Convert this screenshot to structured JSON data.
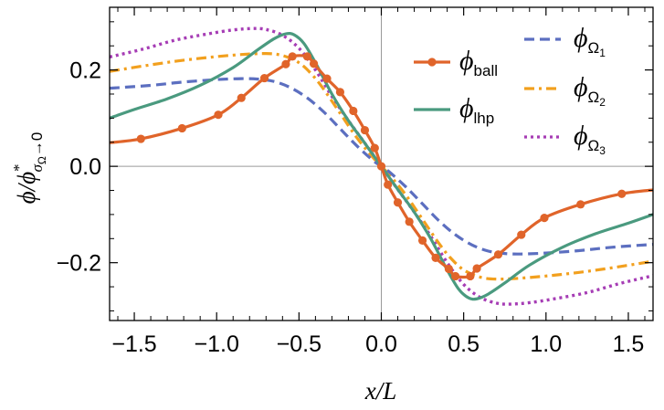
{
  "chart_data": {
    "type": "line",
    "xlabel": "x/L",
    "ylabel": {
      "main": "ϕ/ϕ",
      "sup": "*",
      "sub_sigma": "σ",
      "sub_omega": "Ω",
      "sub_arrow": "→0"
    },
    "xlim": [
      -1.65,
      1.65
    ],
    "ylim": [
      -0.32,
      0.33
    ],
    "x_ticks": [
      -1.5,
      -1.0,
      -0.5,
      0.0,
      0.5,
      1.0,
      1.5
    ],
    "x_tick_labels": [
      "−1.5",
      "−1.0",
      "−0.5",
      "0.0",
      "0.5",
      "1.0",
      "1.5"
    ],
    "y_ticks": [
      -0.2,
      0.0,
      0.2
    ],
    "y_tick_labels": [
      "−0.2",
      "0.0",
      "0.2"
    ],
    "colors": {
      "ball": "#E0642A",
      "lhp": "#4A9A7F",
      "omega1": "#5C6FC0",
      "omega2": "#F2A01E",
      "omega3": "#A63DB5"
    },
    "series": [
      {
        "id": "ball",
        "name": "ϕ",
        "sub": "ball",
        "style": "solid-markers",
        "x": [
          -1.65,
          -1.46,
          -1.21,
          -0.99,
          -0.85,
          -0.71,
          -0.58,
          -0.54,
          -0.45,
          -0.41,
          -0.33,
          -0.25,
          -0.17,
          -0.1,
          -0.04,
          0.0,
          0.04,
          0.1,
          0.17,
          0.25,
          0.33,
          0.41,
          0.45,
          0.54,
          0.58,
          0.71,
          0.85,
          0.99,
          1.21,
          1.46,
          1.65
        ],
        "y": [
          0.049,
          0.057,
          0.079,
          0.107,
          0.142,
          0.183,
          0.212,
          0.228,
          0.228,
          0.213,
          0.182,
          0.154,
          0.115,
          0.075,
          0.038,
          0.0,
          -0.038,
          -0.075,
          -0.115,
          -0.154,
          -0.19,
          -0.213,
          -0.228,
          -0.228,
          -0.212,
          -0.183,
          -0.142,
          -0.107,
          -0.079,
          -0.057,
          -0.049
        ],
        "markers_x": [
          -1.46,
          -1.21,
          -0.99,
          -0.85,
          -0.71,
          -0.58,
          -0.54,
          -0.45,
          -0.41,
          -0.33,
          -0.25,
          -0.17,
          -0.1,
          -0.04,
          0.0,
          0.04,
          0.1,
          0.17,
          0.25,
          0.33,
          0.41,
          0.45,
          0.54,
          0.58,
          0.71,
          0.85,
          0.99,
          1.21,
          1.46
        ]
      },
      {
        "id": "lhp",
        "name": "ϕ",
        "sub": "lhp",
        "style": "solid",
        "x": [
          -1.65,
          -1.5,
          -1.3,
          -1.1,
          -0.9,
          -0.75,
          -0.65,
          -0.58,
          -0.53,
          -0.47,
          -0.4,
          -0.3,
          -0.2,
          -0.1,
          0.0,
          0.1,
          0.2,
          0.3,
          0.4,
          0.47,
          0.53,
          0.58,
          0.65,
          0.75,
          0.9,
          1.1,
          1.3,
          1.5,
          1.65
        ],
        "y": [
          0.1,
          0.118,
          0.14,
          0.168,
          0.205,
          0.242,
          0.265,
          0.275,
          0.273,
          0.255,
          0.215,
          0.15,
          0.095,
          0.048,
          0.0,
          -0.048,
          -0.095,
          -0.15,
          -0.215,
          -0.255,
          -0.273,
          -0.275,
          -0.265,
          -0.242,
          -0.205,
          -0.168,
          -0.14,
          -0.118,
          -0.1
        ]
      },
      {
        "id": "omega1",
        "name": "ϕ",
        "sub": "Ω",
        "subsub": "1",
        "style": "dashed",
        "x": [
          -1.65,
          -1.4,
          -1.2,
          -1.0,
          -0.85,
          -0.75,
          -0.65,
          -0.55,
          -0.45,
          -0.35,
          -0.25,
          -0.15,
          -0.05,
          0.0,
          0.05,
          0.15,
          0.25,
          0.35,
          0.45,
          0.55,
          0.65,
          0.75,
          0.85,
          1.0,
          1.2,
          1.4,
          1.65
        ],
        "y": [
          0.162,
          0.168,
          0.175,
          0.18,
          0.182,
          0.181,
          0.176,
          0.163,
          0.142,
          0.113,
          0.078,
          0.043,
          0.012,
          0.0,
          -0.012,
          -0.043,
          -0.078,
          -0.113,
          -0.142,
          -0.163,
          -0.176,
          -0.181,
          -0.182,
          -0.18,
          -0.175,
          -0.168,
          -0.162
        ]
      },
      {
        "id": "omega2",
        "name": "ϕ",
        "sub": "Ω",
        "subsub": "2",
        "style": "dashdot",
        "x": [
          -1.65,
          -1.45,
          -1.25,
          -1.05,
          -0.85,
          -0.7,
          -0.6,
          -0.5,
          -0.42,
          -0.35,
          -0.25,
          -0.15,
          -0.05,
          0.0,
          0.05,
          0.15,
          0.25,
          0.35,
          0.42,
          0.5,
          0.6,
          0.7,
          0.85,
          1.05,
          1.25,
          1.45,
          1.65
        ],
        "y": [
          0.197,
          0.208,
          0.218,
          0.226,
          0.232,
          0.234,
          0.23,
          0.215,
          0.19,
          0.16,
          0.11,
          0.06,
          0.018,
          0.0,
          -0.018,
          -0.06,
          -0.11,
          -0.16,
          -0.19,
          -0.215,
          -0.23,
          -0.234,
          -0.232,
          -0.226,
          -0.218,
          -0.208,
          -0.197
        ]
      },
      {
        "id": "omega3",
        "name": "ϕ",
        "sub": "Ω",
        "subsub": "3",
        "style": "dotted",
        "x": [
          -1.65,
          -1.45,
          -1.25,
          -1.05,
          -0.9,
          -0.78,
          -0.7,
          -0.6,
          -0.5,
          -0.4,
          -0.3,
          -0.2,
          -0.1,
          0.0,
          0.1,
          0.2,
          0.3,
          0.4,
          0.5,
          0.6,
          0.7,
          0.78,
          0.9,
          1.05,
          1.25,
          1.45,
          1.65
        ],
        "y": [
          0.227,
          0.243,
          0.262,
          0.275,
          0.283,
          0.286,
          0.284,
          0.272,
          0.245,
          0.2,
          0.145,
          0.095,
          0.048,
          0.0,
          -0.048,
          -0.095,
          -0.145,
          -0.2,
          -0.245,
          -0.272,
          -0.284,
          -0.286,
          -0.283,
          -0.275,
          -0.262,
          -0.243,
          -0.227
        ]
      }
    ]
  }
}
